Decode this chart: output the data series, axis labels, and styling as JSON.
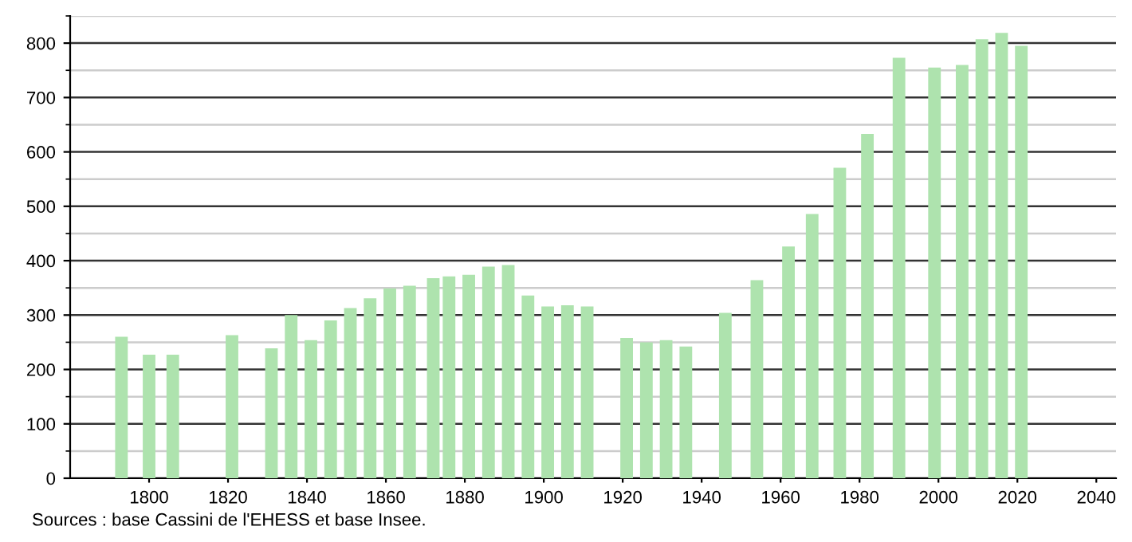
{
  "chart_data": {
    "type": "bar",
    "x": [
      1793,
      1800,
      1806,
      1821,
      1831,
      1836,
      1841,
      1846,
      1851,
      1856,
      1861,
      1866,
      1872,
      1876,
      1881,
      1886,
      1891,
      1896,
      1901,
      1906,
      1911,
      1921,
      1926,
      1931,
      1936,
      1946,
      1954,
      1962,
      1968,
      1975,
      1982,
      1990,
      1999,
      2006,
      2011,
      2016,
      2021
    ],
    "values": [
      260,
      227,
      227,
      263,
      239,
      300,
      254,
      290,
      313,
      331,
      349,
      354,
      368,
      371,
      374,
      389,
      392,
      336,
      316,
      318,
      316,
      258,
      250,
      254,
      242,
      304,
      364,
      426,
      486,
      571,
      633,
      773,
      755,
      760,
      807,
      819,
      795
    ],
    "color": "#aee3ae",
    "xlim": [
      1780,
      2045
    ],
    "xticks": [
      1800,
      1820,
      1840,
      1860,
      1880,
      1900,
      1920,
      1940,
      1960,
      1980,
      2000,
      2020,
      2040
    ],
    "ylim": [
      0,
      850
    ],
    "yticks": [
      0,
      100,
      200,
      300,
      400,
      500,
      600,
      700,
      800
    ],
    "grid": "y",
    "annotations": [
      "Sources : base Cassini de l'EHESS et base Insee."
    ]
  }
}
